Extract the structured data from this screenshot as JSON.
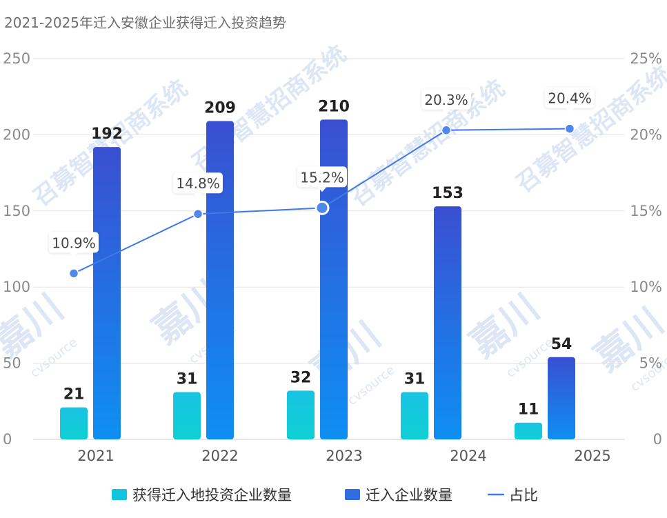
{
  "chart_data": {
    "type": "bar",
    "title": "2021-2025年迁入安徽企业获得迁入投资趋势",
    "categories": [
      "2021",
      "2022",
      "2023",
      "2024",
      "2025"
    ],
    "series": [
      {
        "name": "获得迁入地投资企业数量",
        "type": "bar",
        "axis": "left",
        "values": [
          21,
          31,
          32,
          31,
          11
        ]
      },
      {
        "name": "迁入企业数量",
        "type": "bar",
        "axis": "left",
        "values": [
          192,
          209,
          210,
          153,
          54
        ]
      },
      {
        "name": "占比",
        "type": "line",
        "axis": "right",
        "values": [
          10.9,
          14.8,
          15.2,
          20.3,
          20.4
        ],
        "labels": [
          "10.9%",
          "14.8%",
          "15.2%",
          "20.3%",
          "20.4%"
        ]
      }
    ],
    "y_left": {
      "ylim": [
        0,
        250
      ],
      "ticks": [
        "0",
        "50",
        "100",
        "150",
        "200",
        "250"
      ],
      "tick_values": [
        0,
        50,
        100,
        150,
        200,
        250
      ]
    },
    "y_right": {
      "ylim": [
        0,
        25
      ],
      "ticks": [
        "0",
        "5%",
        "10%",
        "15%",
        "20%",
        "25%"
      ],
      "tick_values": [
        0,
        5,
        10,
        15,
        20,
        25
      ]
    },
    "legend": {
      "position": "bottom",
      "entries": [
        "获得迁入地投资企业数量",
        "迁入企业数量",
        "占比"
      ]
    },
    "grid": true,
    "highlighted_point": 2
  },
  "watermark": {
    "text1": "召募智慧招商系统",
    "text2": "嘉川",
    "text3": "cvsource"
  },
  "colors": {
    "bar1_top": "#19c3e3",
    "bar1_bottom": "#0fcfd4",
    "bar2_top": "#3a4fd2",
    "bar2_bottom": "#0e8ff2",
    "line": "#3f7ae6",
    "point": "#4d88ea",
    "grid": "#e2e2e2"
  }
}
